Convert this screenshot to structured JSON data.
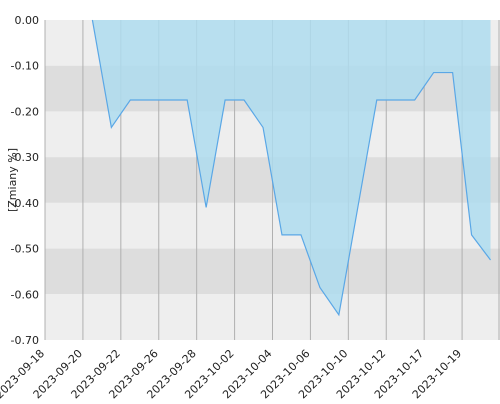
{
  "chart_data": {
    "type": "area",
    "y_label": "[Zmiany %]",
    "categories": [
      "2023-09-18",
      null,
      "2023-09-20",
      null,
      "2023-09-22",
      null,
      "2023-09-26",
      null,
      "2023-09-28",
      null,
      "2023-10-02",
      null,
      "2023-10-04",
      null,
      "2023-10-06",
      null,
      "2023-10-10",
      null,
      "2023-10-12",
      null,
      "2023-10-17",
      null,
      "2023-10-19",
      null
    ],
    "values": [
      null,
      null,
      0.0,
      -0.235,
      -0.175,
      -0.175,
      -0.175,
      -0.175,
      -0.41,
      -0.175,
      -0.175,
      -0.235,
      -0.47,
      -0.47,
      -0.585,
      -0.645,
      -0.41,
      -0.175,
      -0.175,
      -0.175,
      -0.115,
      -0.115,
      -0.47,
      -0.525
    ],
    "color": "#5aa7e6",
    "fill": "#aedcef",
    "ylim": [
      -0.7,
      0
    ],
    "yticks": [
      {
        "value": 0,
        "label": "0.00"
      },
      {
        "value": -0.1,
        "label": "-0.10"
      },
      {
        "value": -0.2,
        "label": "-0.20"
      },
      {
        "value": -0.3,
        "label": "-0.30"
      },
      {
        "value": -0.4,
        "label": "-0.40"
      },
      {
        "value": -0.5,
        "label": "-0.50"
      },
      {
        "value": -0.6,
        "label": "-0.60"
      },
      {
        "value": -0.7,
        "label": "-0.70"
      }
    ],
    "band_colors": [
      "#eeeeee",
      "#dddddd"
    ],
    "grid": true
  }
}
